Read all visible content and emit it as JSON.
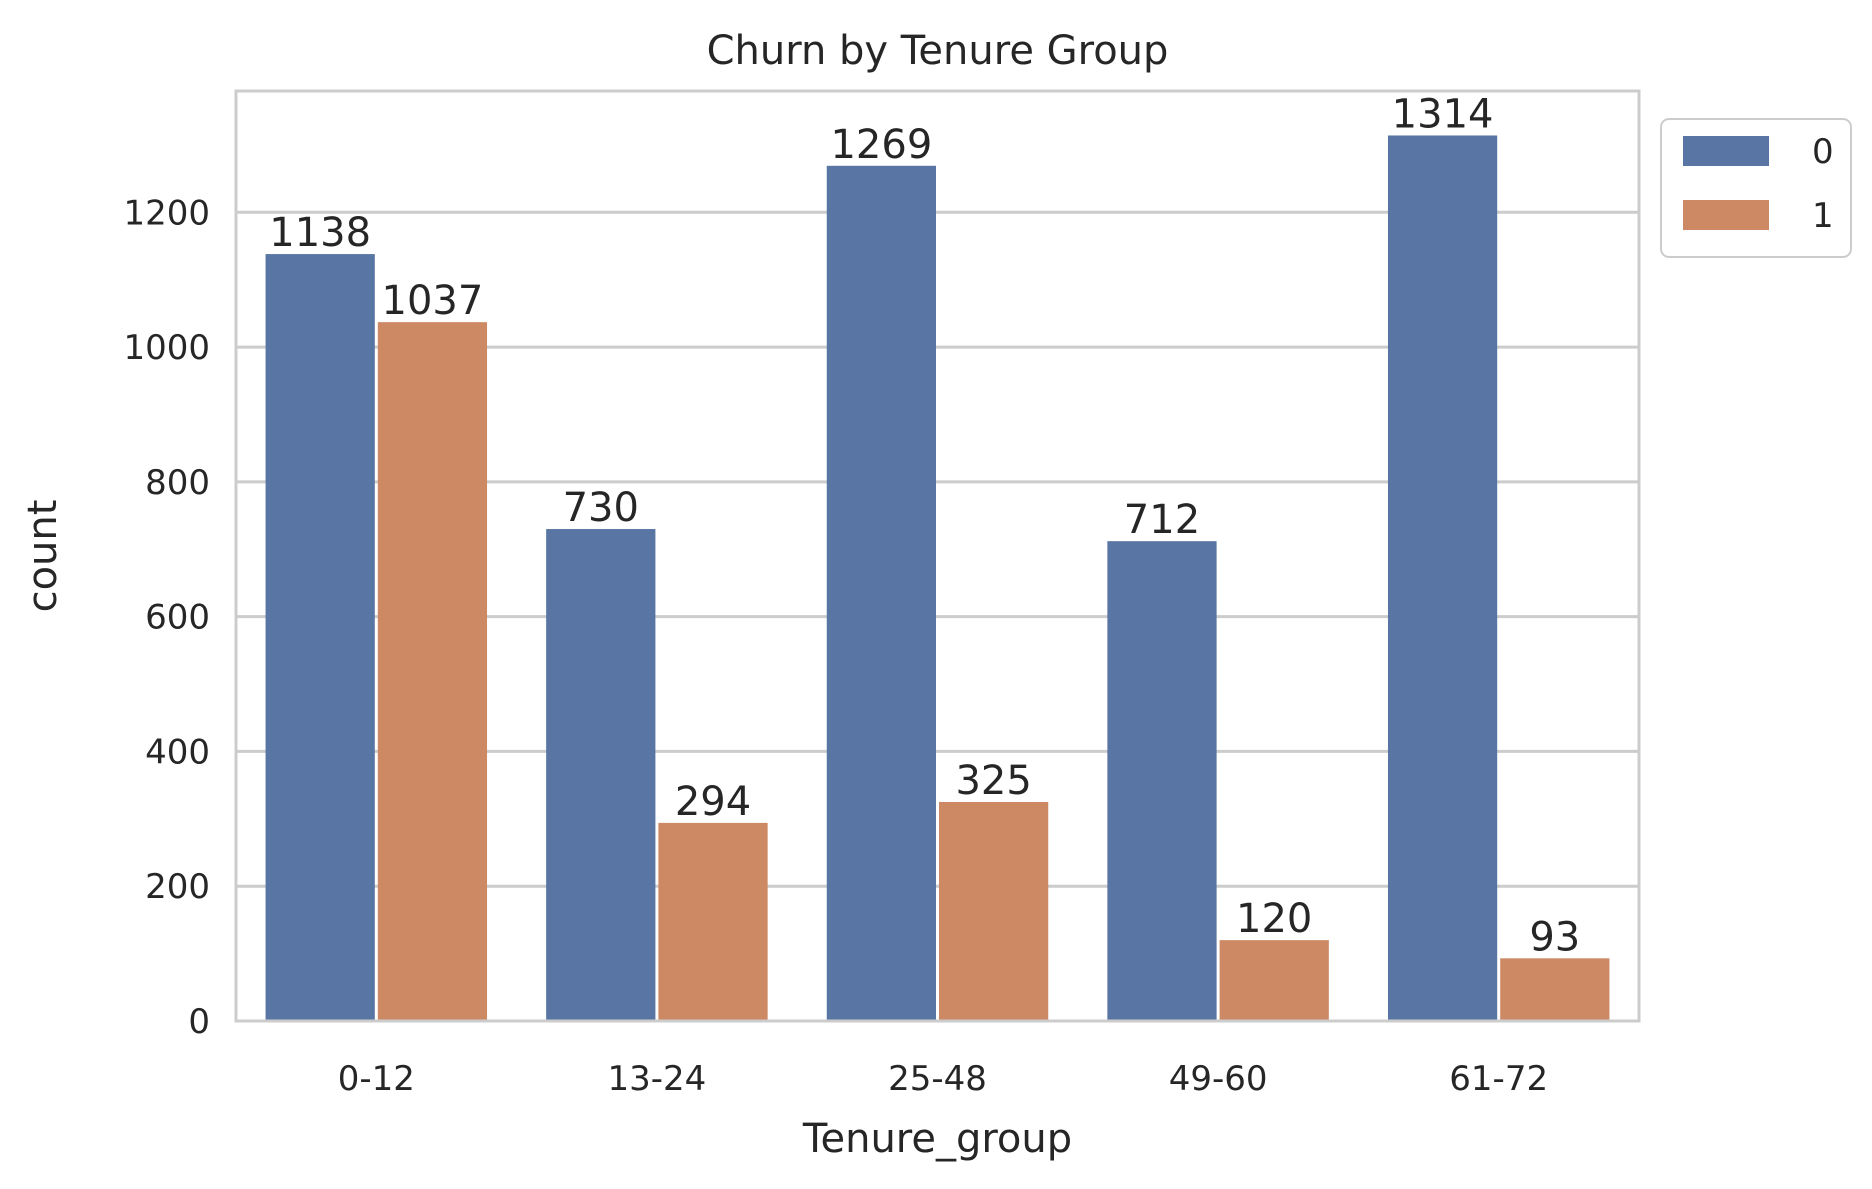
{
  "chart_data": {
    "type": "bar",
    "title": "Churn by Tenure Group",
    "xlabel": "Tenure_group",
    "ylabel": "count",
    "categories": [
      "0-12",
      "13-24",
      "25-48",
      "49-60",
      "61-72"
    ],
    "series": [
      {
        "name": "0",
        "color": "#5875a4",
        "values": [
          1138,
          730,
          1269,
          712,
          1314
        ]
      },
      {
        "name": "1",
        "color": "#cc8963",
        "values": [
          1037,
          294,
          325,
          120,
          93
        ]
      }
    ],
    "ylim": [
      0,
      1380
    ],
    "yticks": [
      0,
      200,
      400,
      600,
      800,
      1000,
      1200
    ],
    "grid": true,
    "legend_position": "outside-top-right"
  }
}
